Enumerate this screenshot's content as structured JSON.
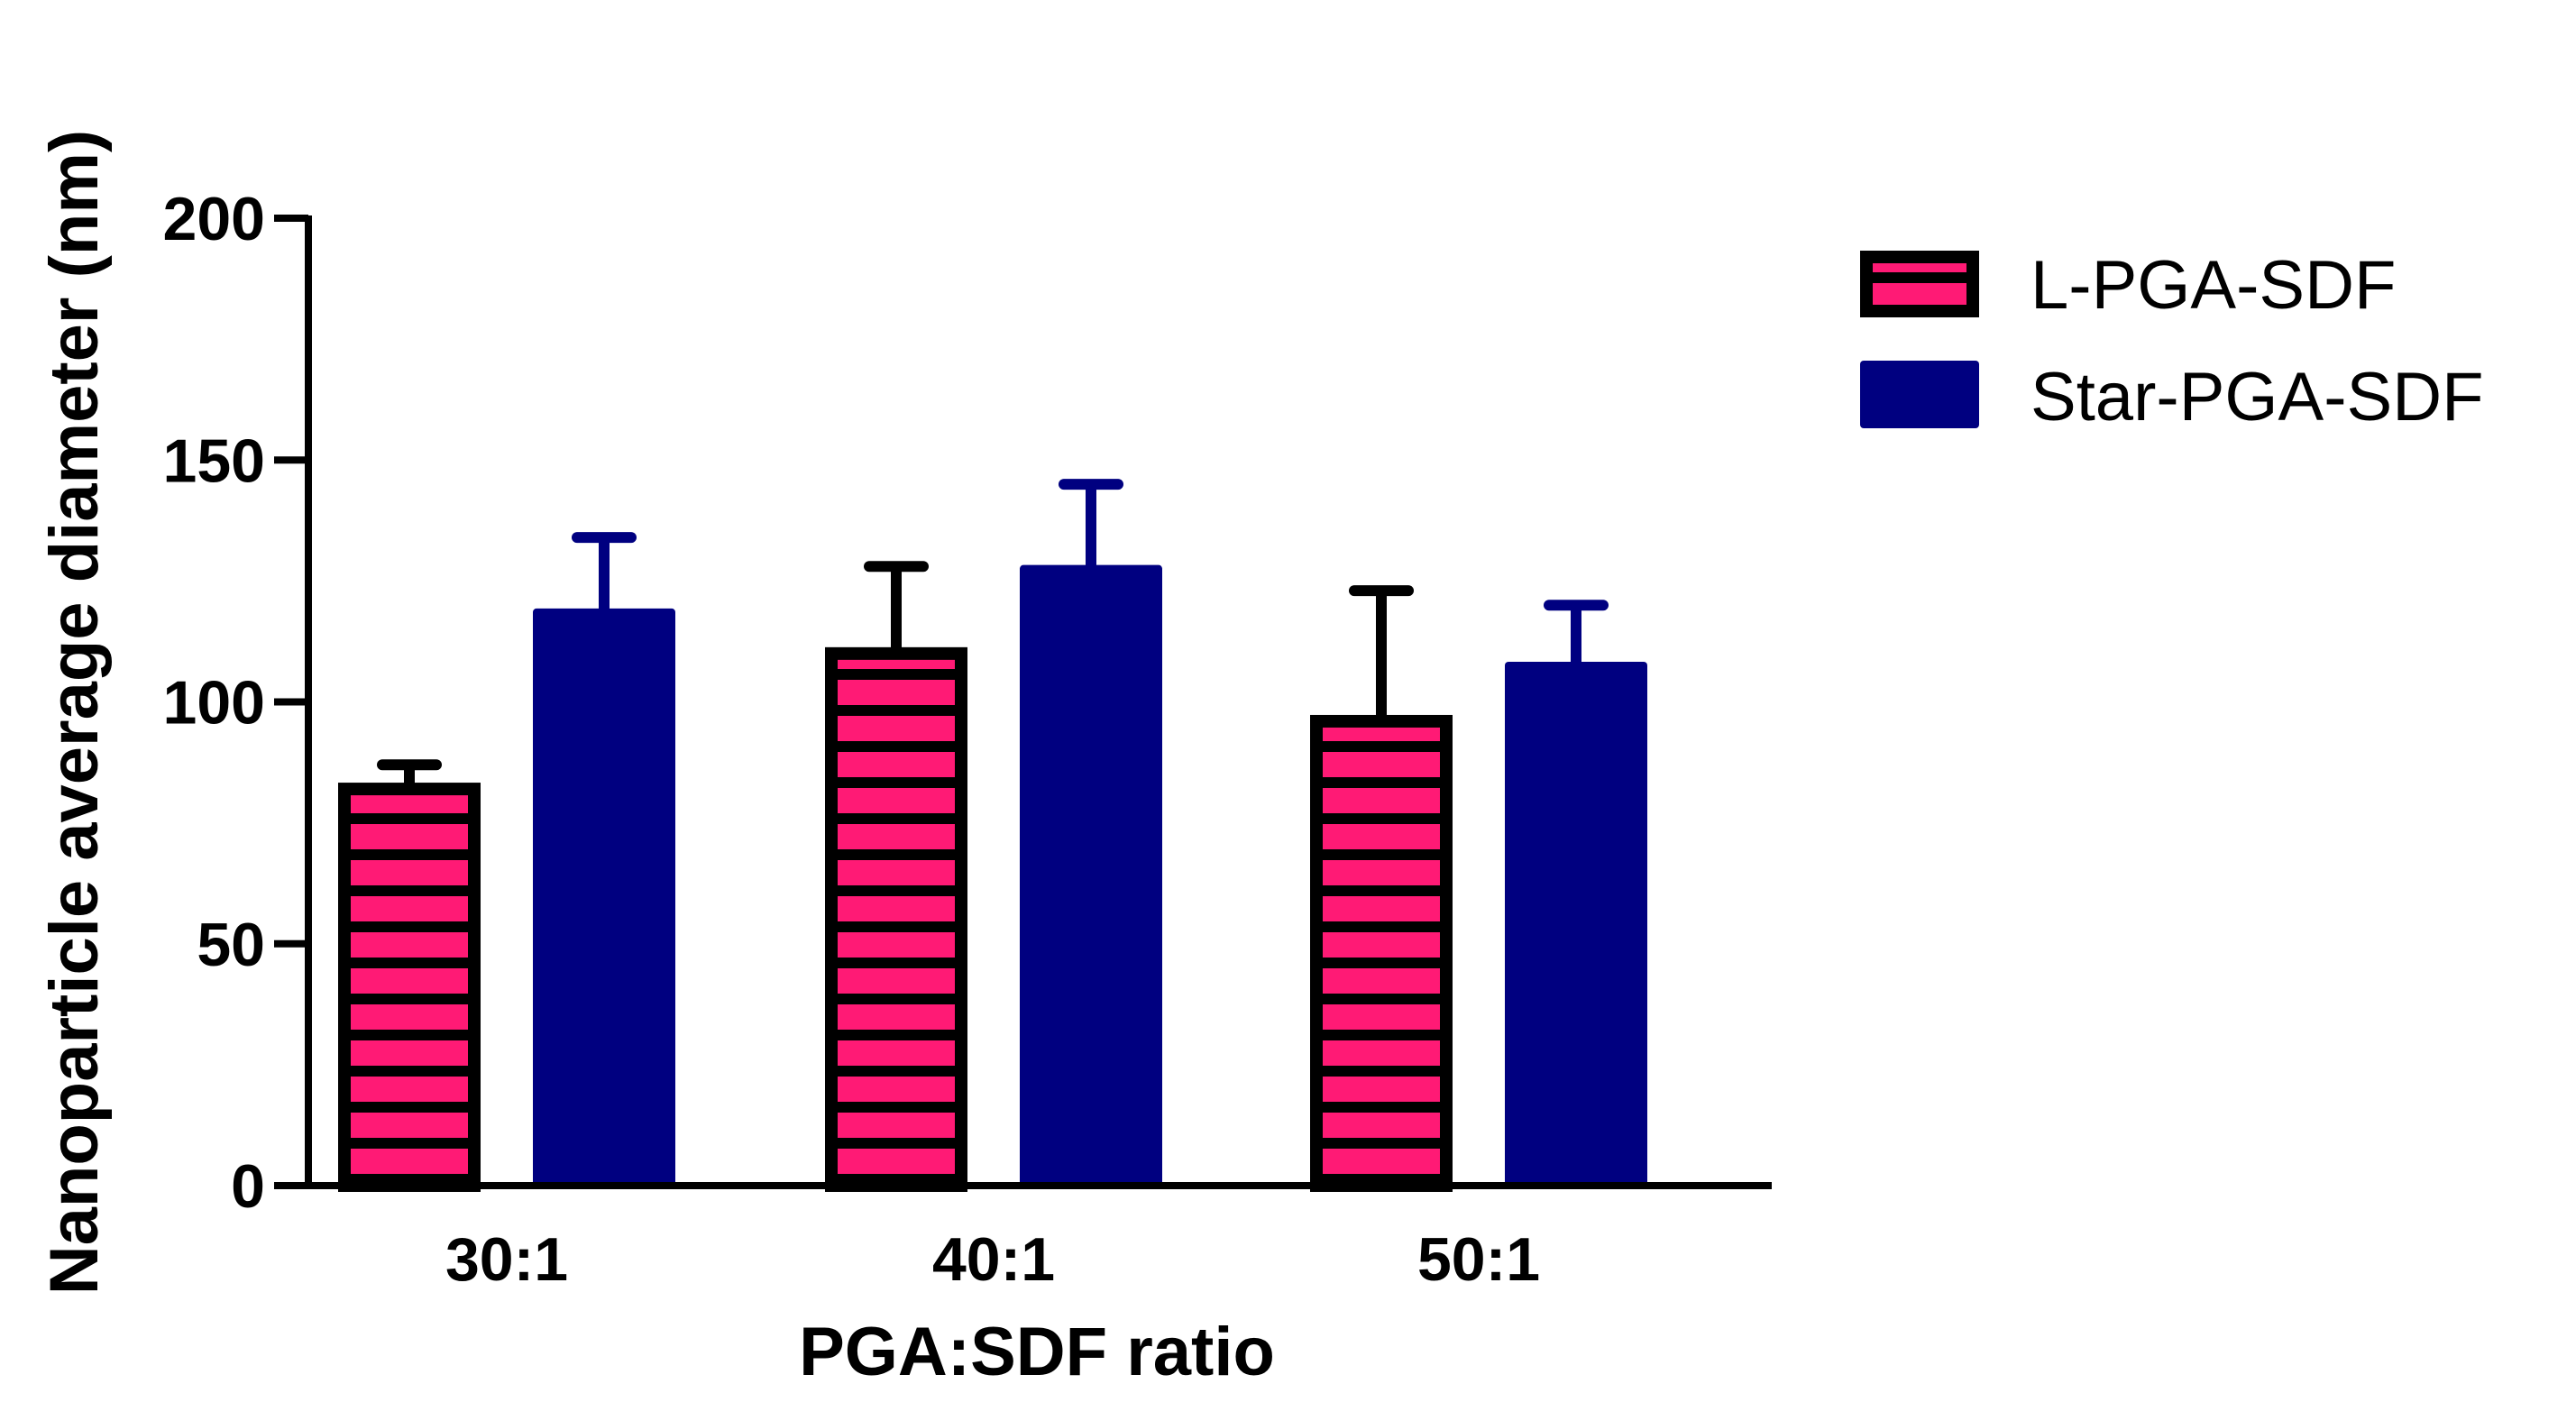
{
  "chart_data": {
    "type": "bar",
    "title": "",
    "xlabel": "PGA:SDF ratio",
    "ylabel": "Nanoparticle average diameter (nm)",
    "categories": [
      "30:1",
      "40:1",
      "50:1"
    ],
    "ylim": [
      0,
      200
    ],
    "yticks": [
      0,
      50,
      100,
      150,
      200
    ],
    "ytick_labels": [
      "0",
      "50",
      "100",
      "150",
      "200"
    ],
    "grid": false,
    "legend_position": "top-right",
    "series": [
      {
        "name": "L-PGA-SDF",
        "values": [
          82,
          110,
          96
        ],
        "errors": [
          5,
          18,
          27
        ],
        "color": "#ff1a75",
        "edge_color": "#000000",
        "pattern": "horizontal-stripes"
      },
      {
        "name": "Star-PGA-SDF",
        "values": [
          118,
          127,
          107
        ],
        "errors": [
          16,
          18,
          13
        ],
        "color": "#000080",
        "edge_color": "#000080",
        "pattern": "solid"
      }
    ]
  }
}
